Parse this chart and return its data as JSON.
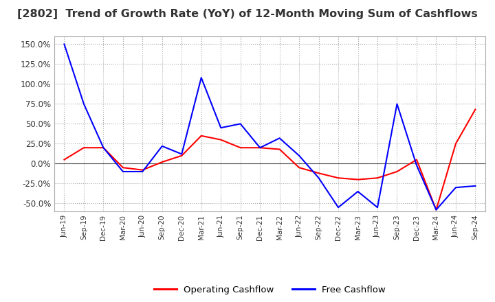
{
  "title": "[2802]  Trend of Growth Rate (YoY) of 12-Month Moving Sum of Cashflows",
  "title_fontsize": 11.5,
  "background_color": "#ffffff",
  "grid_color": "#aaaaaa",
  "dates": [
    "Jun-19",
    "Sep-19",
    "Dec-19",
    "Mar-20",
    "Jun-20",
    "Sep-20",
    "Dec-20",
    "Mar-21",
    "Jun-21",
    "Sep-21",
    "Dec-21",
    "Mar-22",
    "Jun-22",
    "Sep-22",
    "Dec-22",
    "Mar-23",
    "Jun-23",
    "Sep-23",
    "Dec-23",
    "Mar-24",
    "Jun-24",
    "Sep-24"
  ],
  "operating_cashflow": [
    0.05,
    0.2,
    0.2,
    -0.05,
    -0.08,
    0.02,
    0.1,
    0.35,
    0.3,
    0.2,
    0.2,
    0.18,
    -0.05,
    -0.12,
    -0.18,
    -0.2,
    -0.18,
    -0.1,
    0.05,
    -0.58,
    0.25,
    0.68
  ],
  "free_cashflow": [
    1.5,
    0.75,
    0.2,
    -0.1,
    -0.1,
    0.22,
    0.12,
    1.08,
    0.45,
    0.5,
    0.2,
    0.32,
    0.1,
    -0.18,
    -0.55,
    -0.35,
    -0.55,
    0.75,
    -0.02,
    -0.58,
    -0.3,
    -0.28
  ],
  "operating_color": "#ff0000",
  "free_color": "#0000ff",
  "yticks": [
    -0.5,
    -0.25,
    0.0,
    0.25,
    0.5,
    0.75,
    1.0,
    1.25,
    1.5
  ],
  "ylim_min": -0.6,
  "ylim_max": 1.6,
  "legend_labels": [
    "Operating Cashflow",
    "Free Cashflow"
  ]
}
